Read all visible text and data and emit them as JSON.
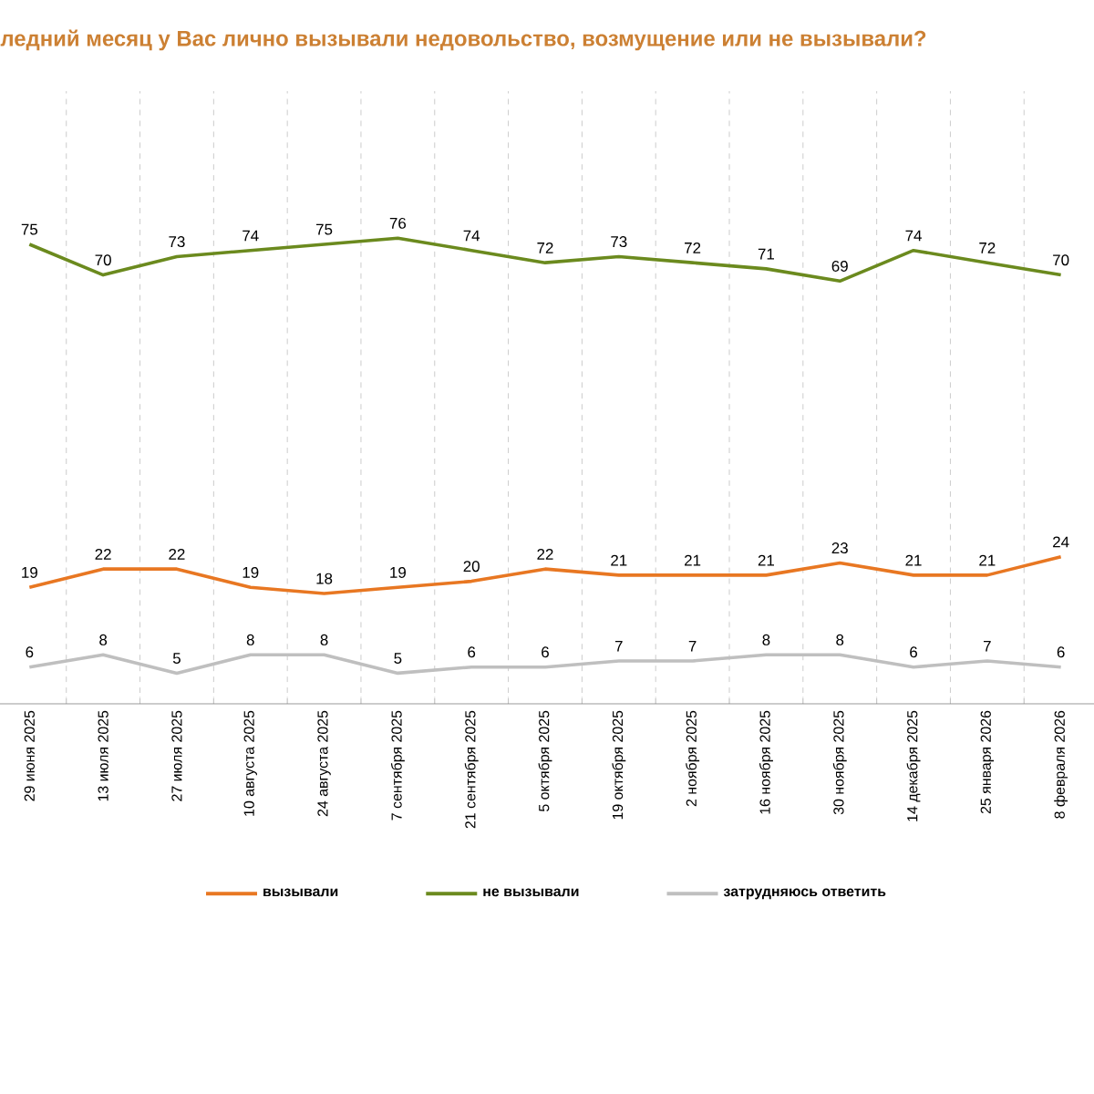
{
  "chart_data": {
    "type": "line",
    "title": "ледний месяц у Вас лично вызывали недовольство, возмущение или не вызывали?",
    "categories": [
      "29 июня 2025",
      "13 июля 2025",
      "27 июля 2025",
      "10 августа 2025",
      "24 августа 2025",
      "7 сентября 2025",
      "21 сентября 2025",
      "5 октября 2025",
      "19 октября 2025",
      "2 ноября 2025",
      "16 ноября 2025",
      "30 ноября 2025",
      "14 декабря 2025",
      "25 января 2026",
      "8 февраля 2026"
    ],
    "series": [
      {
        "name": "вызывали",
        "color": "#e87722",
        "values": [
          19,
          22,
          22,
          19,
          18,
          19,
          20,
          22,
          21,
          21,
          21,
          23,
          21,
          21,
          24
        ]
      },
      {
        "name": "не вызывали",
        "color": "#6b8a1e",
        "values": [
          75,
          70,
          73,
          74,
          75,
          76,
          74,
          72,
          73,
          72,
          71,
          69,
          74,
          72,
          70
        ]
      },
      {
        "name": "затрудняюсь ответить",
        "color": "#bfbfbf",
        "values": [
          6,
          8,
          5,
          8,
          8,
          5,
          6,
          6,
          7,
          7,
          8,
          8,
          6,
          7,
          6
        ]
      }
    ],
    "ylim": [
      0,
      100
    ],
    "tick_labels": "x",
    "grid": "x",
    "legend": "bottom",
    "data_labels": true,
    "marker": "none",
    "line_style": "solid"
  }
}
